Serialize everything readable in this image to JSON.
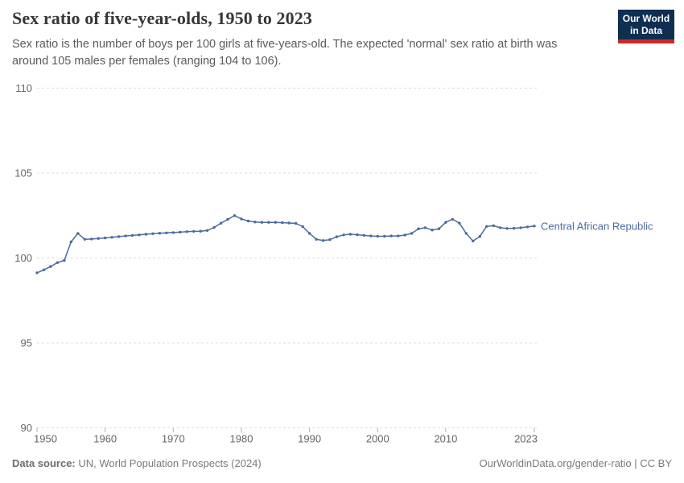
{
  "header": {
    "title": "Sex ratio of five-year-olds, 1950 to 2023",
    "subtitle": "Sex ratio is the number of boys per 100 girls at five-years-old. The expected 'normal' sex ratio at birth was around 105 males per females (ranging 104 to 106).",
    "logo": {
      "line1": "Our World",
      "line2": "in Data",
      "navy": "#0f2e52",
      "red": "#cc2a29"
    }
  },
  "chart_data": {
    "type": "line",
    "title": "Sex ratio of five-year-olds, 1950 to 2023",
    "xlabel": "",
    "ylabel": "",
    "xlim": [
      1950,
      2023
    ],
    "ylim": [
      90,
      110
    ],
    "xticks": [
      1950,
      1960,
      1970,
      1980,
      1990,
      2000,
      2010,
      2023
    ],
    "yticks": [
      90,
      95,
      100,
      105,
      110
    ],
    "grid": "dashed-horizontal",
    "legend_position": "end-of-line-label",
    "colors": {
      "line": "#4c6a9c",
      "grid": "#dddddd",
      "tick_text": "#666666",
      "tick_mark": "#b0b0b0"
    },
    "x": [
      1950,
      1951,
      1952,
      1953,
      1954,
      1955,
      1956,
      1957,
      1958,
      1959,
      1960,
      1961,
      1962,
      1963,
      1964,
      1965,
      1966,
      1967,
      1968,
      1969,
      1970,
      1971,
      1972,
      1973,
      1974,
      1975,
      1976,
      1977,
      1978,
      1979,
      1980,
      1981,
      1982,
      1983,
      1984,
      1985,
      1986,
      1987,
      1988,
      1989,
      1990,
      1991,
      1992,
      1993,
      1994,
      1995,
      1996,
      1997,
      1998,
      1999,
      2000,
      2001,
      2002,
      2003,
      2004,
      2005,
      2006,
      2007,
      2008,
      2009,
      2010,
      2011,
      2012,
      2013,
      2014,
      2015,
      2016,
      2017,
      2018,
      2019,
      2020,
      2021,
      2022,
      2023
    ],
    "series": [
      {
        "name": "Central African Republic",
        "color": "#4c6a9c",
        "values": [
          99.13,
          99.3,
          99.5,
          99.73,
          99.86,
          100.95,
          101.45,
          101.1,
          101.12,
          101.15,
          101.18,
          101.22,
          101.26,
          101.3,
          101.33,
          101.36,
          101.4,
          101.43,
          101.46,
          101.48,
          101.5,
          101.52,
          101.55,
          101.57,
          101.58,
          101.62,
          101.8,
          102.05,
          102.27,
          102.5,
          102.3,
          102.18,
          102.12,
          102.1,
          102.1,
          102.1,
          102.08,
          102.06,
          102.04,
          101.85,
          101.45,
          101.1,
          101.03,
          101.08,
          101.25,
          101.36,
          101.4,
          101.37,
          101.33,
          101.3,
          101.28,
          101.28,
          101.3,
          101.3,
          101.35,
          101.45,
          101.72,
          101.78,
          101.65,
          101.72,
          102.1,
          102.28,
          102.05,
          101.45,
          101.0,
          101.27,
          101.86,
          101.9,
          101.78,
          101.74,
          101.75,
          101.78,
          101.83,
          101.88
        ]
      }
    ]
  },
  "footer": {
    "datasource_label": "Data source:",
    "datasource": "UN, World Population Prospects (2024)",
    "attribution": "OurWorldinData.org/gender-ratio | CC BY"
  }
}
